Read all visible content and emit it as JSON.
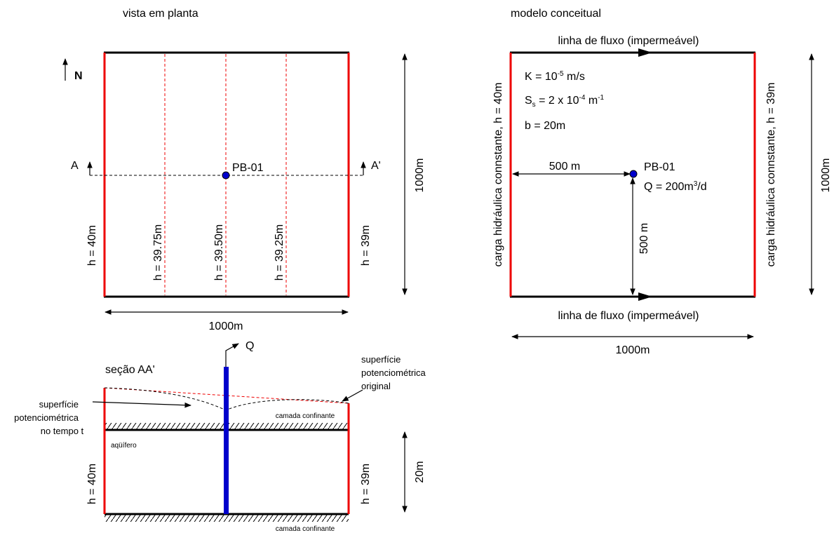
{
  "plan_view": {
    "title": "vista em planta",
    "north": "N",
    "section_start": "A",
    "section_end": "A'",
    "well": "PB-01",
    "width_label": "1000m",
    "height_label": "1000m",
    "heads": [
      "h = 40m",
      "h = 39.75m",
      "h = 39.50m",
      "h = 39.25m",
      "h = 39m"
    ]
  },
  "conceptual_model": {
    "title": "modelo conceitual",
    "top_boundary": "linha de fluxo (impermeável)",
    "bottom_boundary": "linha de fluxo (impermeável)",
    "left_boundary": "carga hidráulica connstante, h = 40m",
    "right_boundary": "carga hidráulica connstante, h = 39m",
    "conductivity": {
      "text": "K = 10",
      "exponent": "-5",
      "unit": " m/s"
    },
    "storage": {
      "symbol": "S",
      "subscript": "s",
      "text": " = 2 x 10",
      "exponent": "-4",
      "unit": " m",
      "unit_exponent": "-1"
    },
    "thickness": "b = 20m",
    "distance_x": "500 m",
    "distance_y": "500 m",
    "well": "PB-01",
    "pumping": {
      "text": "Q = 200m",
      "exponent": "3",
      "unit": "/d"
    },
    "width_label": "1000m",
    "height_label": "1000m"
  },
  "section": {
    "title": "seção AA'",
    "discharge": "Q",
    "original_surface": [
      "superfície",
      "potenciométrica",
      "original"
    ],
    "surface_at_t": [
      "superfície",
      "potenciométrica",
      "no tempo t"
    ],
    "upper_confining": "camada confinante",
    "aquifer": "aqüífero",
    "lower_confining": "camada confinante",
    "head_left": "h = 40m",
    "head_right": "h = 39m",
    "thickness_label": "20m"
  }
}
